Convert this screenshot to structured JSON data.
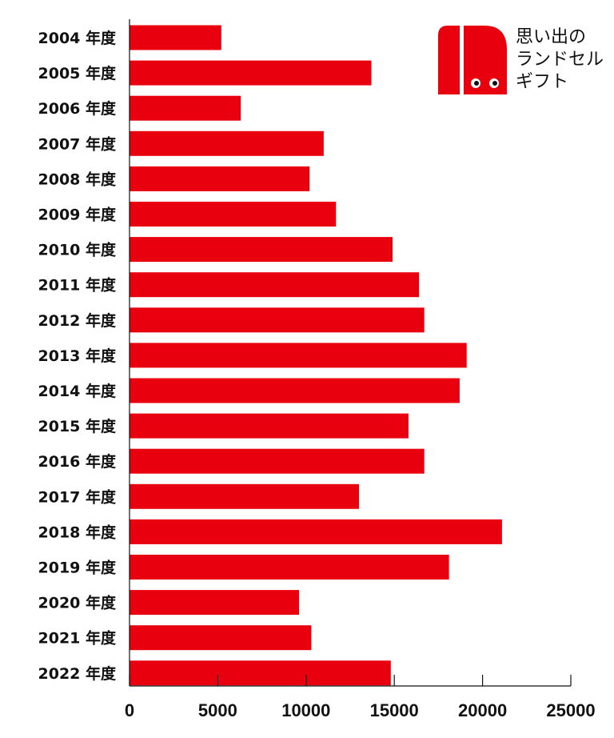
{
  "chart_data": {
    "type": "bar",
    "orientation": "horizontal",
    "categories": [
      "2004 年度",
      "2005 年度",
      "2006 年度",
      "2007 年度",
      "2008 年度",
      "2009 年度",
      "2010 年度",
      "2011 年度",
      "2012 年度",
      "2013 年度",
      "2014 年度",
      "2015 年度",
      "2016 年度",
      "2017 年度",
      "2018 年度",
      "2019 年度",
      "2020 年度",
      "2021 年度",
      "2022 年度"
    ],
    "values": [
      5200,
      13700,
      6300,
      11000,
      10200,
      11700,
      14900,
      16400,
      16700,
      19100,
      18700,
      15800,
      16700,
      13000,
      21100,
      18100,
      9600,
      10300,
      14800
    ],
    "xlim": [
      0,
      25000
    ],
    "xticks": [
      "0",
      "5000",
      "10000",
      "15000",
      "20000",
      "25000"
    ],
    "xlabel": "",
    "ylabel": "",
    "title": "",
    "grid": false,
    "bar_color": "#E8000F"
  },
  "logo": {
    "lines": [
      "思い出の",
      "ランドセル",
      "ギフト"
    ],
    "brand_color": "#E8000F"
  }
}
